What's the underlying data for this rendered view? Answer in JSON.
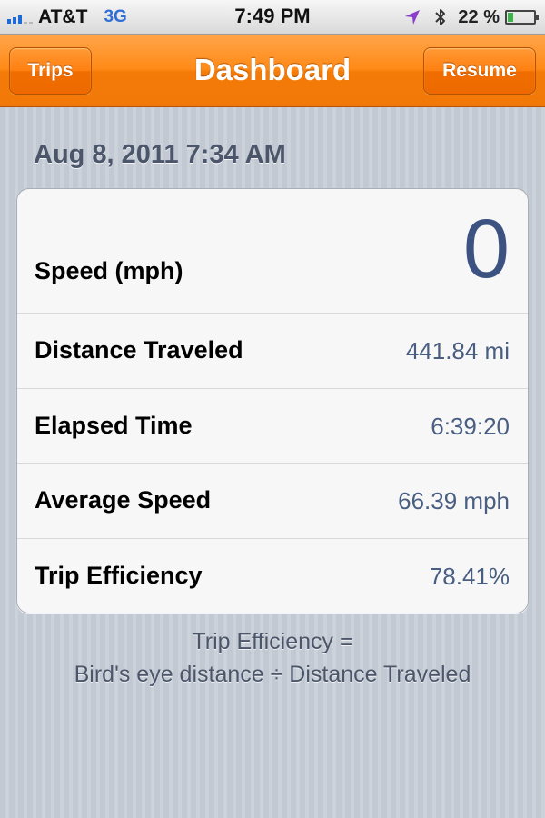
{
  "status_bar": {
    "carrier": "AT&T",
    "network": "3G",
    "time": "7:49 PM",
    "battery_percent": "22 %",
    "battery_level": 0.22,
    "signal_bars_active": 3,
    "signal_bars_total": 5,
    "icons": [
      "location-arrow-icon",
      "bluetooth-icon",
      "battery-icon"
    ]
  },
  "nav": {
    "title": "Dashboard",
    "left_button": "Trips",
    "right_button": "Resume"
  },
  "trip": {
    "date": "Aug 8, 2011 7:34 AM",
    "rows": [
      {
        "label": "Speed (mph)",
        "value": "0"
      },
      {
        "label": "Distance Traveled",
        "value": "441.84 mi"
      },
      {
        "label": "Elapsed Time",
        "value": "6:39:20"
      },
      {
        "label": "Average Speed",
        "value": "66.39 mph"
      },
      {
        "label": "Trip Efficiency",
        "value": "78.41%"
      }
    ]
  },
  "footnote": {
    "line1": "Trip Efficiency =",
    "line2": "Bird's eye distance ÷ Distance Traveled"
  },
  "colors": {
    "nav_orange": "#ff8a16",
    "value_blue": "#4a5e82",
    "background_gray": "#c5ccd4"
  }
}
